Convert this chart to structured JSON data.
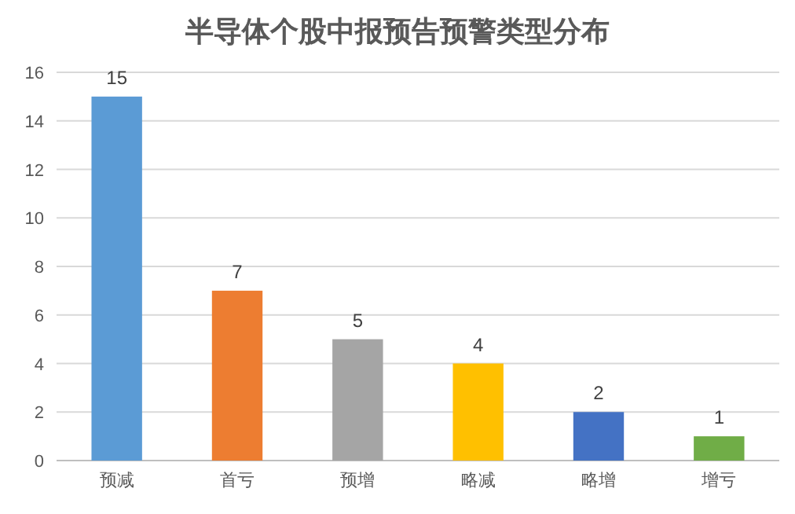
{
  "chart_data": {
    "type": "bar",
    "title": "半导体个股中报预告预警类型分布",
    "categories": [
      "预减",
      "首亏",
      "预增",
      "略减",
      "略增",
      "增亏"
    ],
    "values": [
      15,
      7,
      5,
      4,
      2,
      1
    ],
    "colors": [
      "#5b9bd5",
      "#ed7d31",
      "#a5a5a5",
      "#ffc000",
      "#4472c4",
      "#70ad47"
    ],
    "ylim": [
      0,
      16
    ],
    "yticks": [
      0,
      2,
      4,
      6,
      8,
      10,
      12,
      14,
      16
    ],
    "grid": "y",
    "data_labels": true
  }
}
